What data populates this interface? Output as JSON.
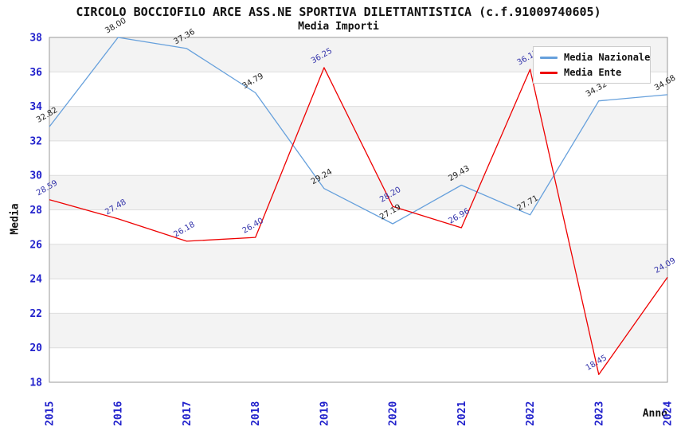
{
  "header": {
    "title": "CIRCOLO BOCCIOFILO ARCE ASS.NE SPORTIVA DILETTANTISTICA (c.f.91009740605)",
    "subtitle": "Media Importi"
  },
  "colors": {
    "tick_label_blue": "#2222cc",
    "band_gray": "#f3f3f3",
    "gridline": "#dddddd",
    "plot_border": "#999999",
    "legend_border": "#cccccc",
    "background": "#ffffff"
  },
  "chart_data": {
    "type": "line",
    "title": "CIRCOLO BOCCIOFILO ARCE ASS.NE SPORTIVA DILETTANTISTICA (c.f.91009740605)",
    "subtitle": "Media Importi",
    "xlabel": "Anno",
    "ylabel": "Media",
    "x": [
      2015,
      2016,
      2017,
      2018,
      2019,
      2020,
      2021,
      2022,
      2023,
      2024
    ],
    "ylim": [
      18,
      38
    ],
    "ytick_step": 2,
    "grid": "horizontal-alternating-bands",
    "legend_position": "upper-right",
    "point_label_format": "2-decimals",
    "series": [
      {
        "name": "Media Nazionale",
        "color": "#66a0dc",
        "label_color": "#222222",
        "values": [
          32.82,
          38.0,
          37.36,
          34.79,
          29.24,
          27.19,
          29.43,
          27.71,
          34.32,
          34.68
        ]
      },
      {
        "name": "Media Ente",
        "color": "#ee0000",
        "label_color": "#3333aa",
        "values": [
          28.59,
          27.48,
          26.18,
          26.4,
          36.25,
          28.2,
          26.96,
          36.15,
          18.45,
          24.09
        ]
      }
    ]
  }
}
